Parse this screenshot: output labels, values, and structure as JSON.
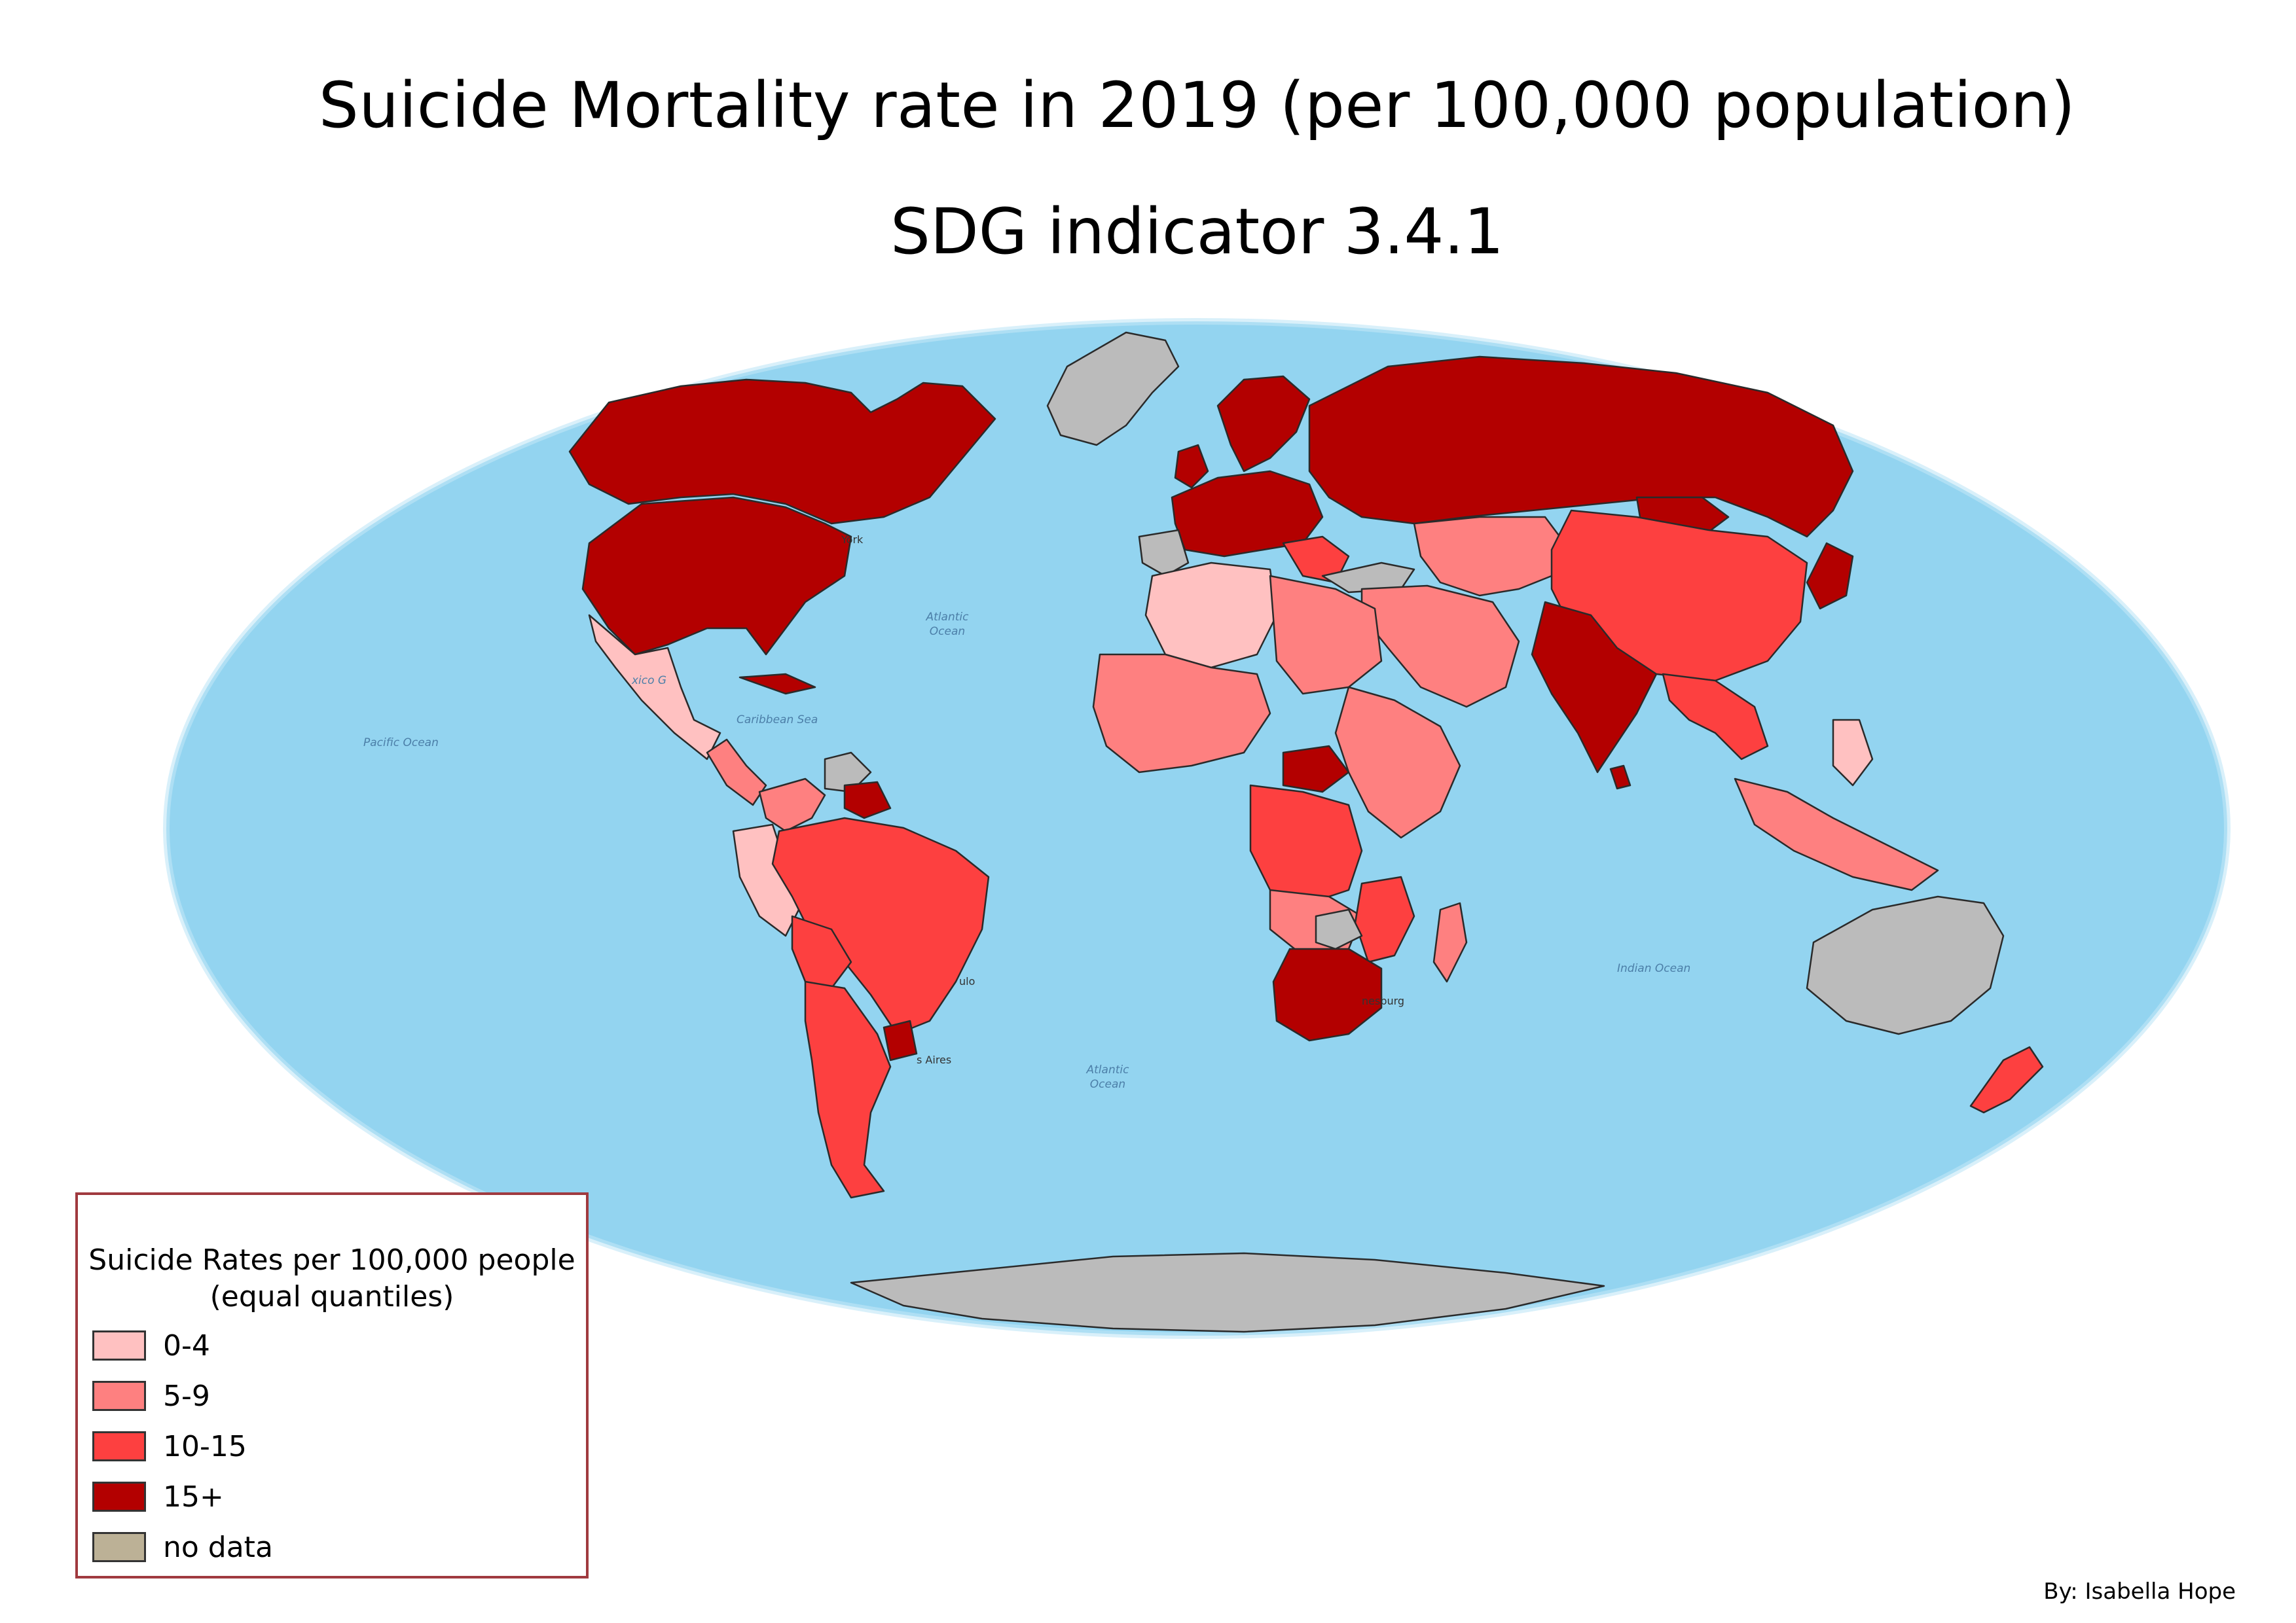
{
  "title": "Suicide Mortality rate in 2019 (per 100,000 population)",
  "subtitle": "SDG indicator 3.4.1",
  "legend": {
    "title": "Suicide Rates per 100,000 people",
    "subtitle": "(equal quantiles)",
    "classes": [
      {
        "label": "0-4",
        "color": "#ffc1c1"
      },
      {
        "label": "5-9",
        "color": "#fe8080"
      },
      {
        "label": "10-15",
        "color": "#fd4040"
      },
      {
        "label": "15+",
        "color": "#b30000"
      },
      {
        "label": "no data",
        "color": "#bcb196"
      }
    ]
  },
  "colors": {
    "ocean": "#93d4f0",
    "ocean_deep": "#7fc7ea",
    "no_data_fill": "#bbbbbb",
    "border": "#2a2a2a",
    "legend_border": "#a03a3f"
  },
  "map_labels": {
    "atlantic_north": [
      "Atlantic",
      "Ocean"
    ],
    "atlantic_south": [
      "Atlantic",
      "Ocean"
    ],
    "pacific": "Pacific Ocean",
    "caribbean": "Caribbean Sea",
    "gulf": "xico G",
    "indian": "Indian Ocean",
    "york": "York",
    "buenos_aires": "s Aires",
    "sao_paulo": "ulo",
    "johannesburg": "nesburg"
  },
  "credit": "By: Isabella Hope"
}
